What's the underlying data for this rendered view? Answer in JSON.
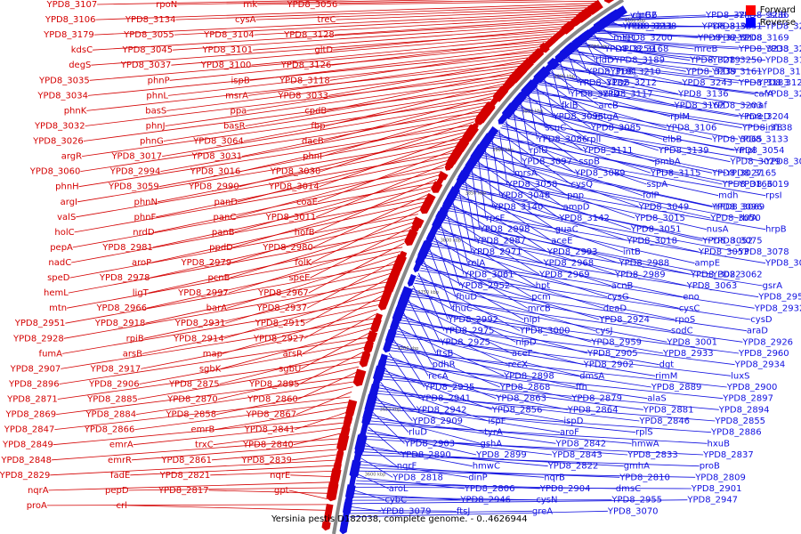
{
  "caption": "Yersinia pestis D182038, complete genome. - 0..4626944",
  "legend": [
    {
      "label": "Forward",
      "color": "#ff0000"
    },
    {
      "label": "Reverse",
      "color": "#0000ff"
    }
  ],
  "colors": {
    "forward": "#d40000",
    "reverse": "#1010e0",
    "backbone": "#888888"
  },
  "ticks": [
    "3600 kbp",
    "3650 kbp",
    "3700 kbp",
    "3750 kbp",
    "3800 kbp",
    "3850 kbp",
    "3900 kbp",
    "3950 kbp",
    "4000 kbp",
    "4050 kbp",
    "4100 kbp"
  ],
  "forward_labels": [
    "YPD8_3107",
    "rpoN",
    "rnk",
    "YPD8_3056",
    "YPD8_3106",
    "YPD8_3134",
    "cysA",
    "treC",
    "YPD8_3179",
    "YPD8_3055",
    "YPD8_3104",
    "YPD8_3128",
    "kdsC",
    "YPD8_3045",
    "YPD8_3101",
    "gltD",
    "degS",
    "YPD8_3037",
    "YPD8_3100",
    "YPD8_3126",
    "YPD8_3035",
    "phnP",
    "ispB",
    "YPD8_3118",
    "YPD8_3034",
    "phnL",
    "msrA",
    "YPD8_3033",
    "phnK",
    "basS",
    "ppa",
    "cpdB",
    "YPD8_3032",
    "phnJ",
    "basR",
    "fbp",
    "YPD8_3026",
    "phnG",
    "YPD8_3064",
    "dacB",
    "argR",
    "YPD8_3017",
    "YPD8_3031",
    "phnI",
    "YPD8_3060",
    "YPD8_2994",
    "YPD8_3016",
    "YPD8_3030",
    "phnH",
    "YPD8_3059",
    "YPD8_2990",
    "YPD8_3014",
    "argI",
    "phnN",
    "panD",
    "coaE",
    "valS",
    "phnF",
    "panC",
    "YPD8_3011",
    "holC",
    "nrdD",
    "panB",
    "hofB",
    "pepA",
    "YPD8_2981",
    "ppdD",
    "YPD8_2980",
    "nadC",
    "aroP",
    "YPD8_2979",
    "folK",
    "speD",
    "YPD8_2978",
    "pcnB",
    "speE",
    "hemL",
    "ligT",
    "YPD8_2997",
    "YPD8_2967",
    "mtn",
    "YPD8_2966",
    "barA",
    "YPD8_2937",
    "YPD8_2951",
    "YPD8_2918",
    "YPD8_2931",
    "YPD8_2915",
    "YPD8_2928",
    "rpiB",
    "YPD8_2914",
    "YPD8_2927",
    "fumA",
    "arsB",
    "map",
    "arsR",
    "YPD8_2907",
    "YPD8_2917",
    "sgbK",
    "sgbU",
    "YPD8_2896",
    "YPD8_2906",
    "YPD8_2875",
    "YPD8_2895",
    "YPD8_2871",
    "YPD8_2885",
    "YPD8_2870",
    "YPD8_2860",
    "YPD8_2869",
    "YPD8_2884",
    "YPD8_2858",
    "YPD8_2867",
    "YPD8_2847",
    "YPD8_2866",
    "emrB",
    "YPD8_2841",
    "YPD8_2849",
    "emrA",
    "trxC",
    "YPD8_2840",
    "YPD8_2848",
    "emrR",
    "YPD8_2861",
    "YPD8_2839",
    "YPD8_2829",
    "fadE",
    "YPD8_2821",
    "nqrE",
    "nqrA",
    "pepD",
    "YPD8_2817",
    "gpt",
    "proA",
    "crl"
  ],
  "reverse_labels": [
    "clpB2",
    "vgrG6",
    "YPD8_3249",
    "ssuB",
    "YPD8_3236",
    "YPD8_3211",
    "YPD8_3238",
    "YPD8_3199",
    "YPD8_3231",
    "YPD8_3261",
    "mreC",
    "YPD8_3200",
    "YPD8_3232",
    "YPD8_3169",
    "YPD8_3208",
    "YPD8_3259",
    "YPD8_3168",
    "mreB",
    "YPD8_3201",
    "YPD8_3233",
    "tldD",
    "YPD8_3189",
    "YPD8_3219",
    "YPD8_3250",
    "YPD8_3143",
    "YPD8_3181",
    "YPD8_3210",
    "YPD8_3239",
    "YPD8_3141",
    "YPD8_3161",
    "YPD8_3182",
    "YPD8_3212",
    "YPD8_3243",
    "YPD8_3125",
    "YPD8_3183",
    "YPD8_3214",
    "YPD8_3117",
    "YPD8_3136",
    "cafA",
    "YPD8_3202",
    "fklB",
    "arcB",
    "YPD8_3162",
    "maf",
    "YPD8_3203",
    "YPD8_3095",
    "mtgA",
    "rplM",
    "mreD",
    "YPD8_3204",
    "ssuC",
    "YPD8_3085",
    "YPD8_3106",
    "YPD8_3138",
    "infB",
    "YPD8_3086",
    "rplI",
    "elbB",
    "YPD8_3133",
    "YPD8_3065",
    "rplU",
    "YPD8_3111",
    "YPD8_3139",
    "YPD8_3054",
    "mpl",
    "YPD8_3097",
    "sspB",
    "pmbA",
    "YPD8_3029",
    "YPD8_3057",
    "mrsA",
    "YPD8_3089",
    "YPD8_3115",
    "YPD8_3165",
    "YPD8_3027",
    "YPD8_3058",
    "cysQ",
    "sspA",
    "YPD8_3166",
    "YPD8_3019",
    "YPD8_3048",
    "pnp",
    "folP",
    "mdh",
    "rpsI",
    "YPD8_3140",
    "ampD",
    "YPD8_3049",
    "YPD8_3069",
    "YPD8_3096",
    "rpsF",
    "YPD8_3142",
    "YPD8_3015",
    "YPD8_3050",
    "rbfA",
    "YPD8_2998",
    "guaC",
    "YPD8_3051",
    "nusA",
    "hrpB",
    "YPD8_2987",
    "aceE",
    "YPD8_3018",
    "YPD8_3052",
    "YPD8_3075",
    "YPD8_2971",
    "YPD8_2993",
    "intB",
    "YPD8_3053",
    "YPD8_3078",
    "relA",
    "YPD8_2968",
    "YPD8_2988",
    "ampE",
    "YPD8_3021",
    "YPD8_3061",
    "YPD8_2969",
    "YPD8_2989",
    "YPD8_3022",
    "YPD8_3062",
    "YPD8_2952",
    "hpt",
    "acnB",
    "YPD8_3063",
    "gsrA",
    "fhuD",
    "pcm",
    "cysG",
    "eno",
    "YPD8_2956",
    "fhuC",
    "mrcB",
    "deaD",
    "cysC",
    "YPD8_2932",
    "YPD8_2992",
    "nlpI",
    "YPD8_2924",
    "rpoS",
    "cysD",
    "YPD8_2975",
    "YPD8_3000",
    "cysJ",
    "sodC",
    "araD",
    "YPD8_2925",
    "nlpD",
    "YPD8_2959",
    "YPD8_3001",
    "YPD8_2926",
    "ftsB",
    "aceF",
    "YPD8_2905",
    "YPD8_2933",
    "YPD8_2960",
    "pdhR",
    "recX",
    "YPD8_2902",
    "dgt",
    "YPD8_2934",
    "recA",
    "YPD8_2898",
    "dmsA",
    "rimM",
    "luxS",
    "YPD8_2935",
    "YPD8_2868",
    "ffh",
    "YPD8_2889",
    "YPD8_2900",
    "YPD8_2941",
    "YPD8_2863",
    "YPD8_2879",
    "alaS",
    "YPD8_2897",
    "YPD8_2942",
    "YPD8_2856",
    "YPD8_2864",
    "YPD8_2881",
    "YPD8_2894",
    "YPD8_2909",
    "ispF",
    "ispD",
    "YPD8_2846",
    "YPD8_2855",
    "rluD",
    "tyrA",
    "aroF",
    "rplS",
    "YPD8_2886",
    "YPD8_2903",
    "gshA",
    "YPD8_2842",
    "hmwA",
    "hxuB",
    "YPD8_2890",
    "YPD8_2899",
    "YPD8_2843",
    "YPD8_2833",
    "YPD8_2837",
    "nqrF",
    "hmwC",
    "YPD8_2822",
    "gmhA",
    "proB",
    "YPD8_2818",
    "dinP",
    "nqrB",
    "YPD8_2810",
    "YPD8_2809",
    "aroL",
    "YPD8_2806",
    "YPD8_2904",
    "dmsC",
    "YPD8_2901",
    "cybC",
    "YPD8_2946",
    "cysN",
    "YPD8_2955",
    "YPD8_2947",
    "YPD8_3079",
    "ftsJ",
    "greA",
    "YPD8_3070"
  ]
}
